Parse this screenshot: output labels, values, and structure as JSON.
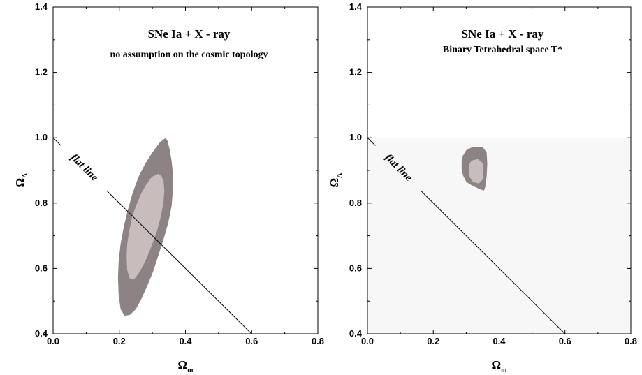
{
  "chart_data": [
    {
      "type": "contour",
      "title": "SNe Ia + X - ray",
      "subtitle": "no assumption on the cosmic topology",
      "xlabel": "Ω",
      "xlabel_sub": "m",
      "ylabel": "Ω",
      "ylabel_sub": "Λ",
      "xlim": [
        0.0,
        0.8
      ],
      "ylim": [
        0.4,
        1.4
      ],
      "xticks": [
        "0.0",
        "0.2",
        "0.4",
        "0.6",
        "0.8"
      ],
      "yticks": [
        "0.4",
        "0.6",
        "0.8",
        "1.0",
        "1.2",
        "1.4"
      ],
      "flat_line": {
        "label": "flat line",
        "x": [
          0.0,
          0.6
        ],
        "y": [
          1.0,
          0.4
        ]
      },
      "regions": [
        {
          "level": "outer",
          "color": "#8e8384",
          "x": [
            0.34,
            0.322,
            0.3,
            0.278,
            0.258,
            0.24,
            0.226,
            0.214,
            0.204,
            0.198,
            0.196,
            0.198,
            0.204,
            0.216,
            0.232,
            0.25,
            0.266,
            0.284,
            0.302,
            0.318,
            0.334,
            0.348,
            0.358,
            0.362,
            0.362,
            0.358,
            0.352,
            0.346,
            0.34
          ],
          "y": [
            1.0,
            0.985,
            0.955,
            0.92,
            0.88,
            0.83,
            0.78,
            0.73,
            0.675,
            0.62,
            0.57,
            0.52,
            0.475,
            0.455,
            0.458,
            0.475,
            0.505,
            0.545,
            0.59,
            0.64,
            0.69,
            0.74,
            0.79,
            0.84,
            0.89,
            0.93,
            0.965,
            0.99,
            1.0
          ]
        },
        {
          "level": "inner",
          "color": "#c8bcbc",
          "x": [
            0.318,
            0.298,
            0.28,
            0.264,
            0.25,
            0.238,
            0.23,
            0.224,
            0.222,
            0.224,
            0.232,
            0.246,
            0.262,
            0.28,
            0.298,
            0.314,
            0.326,
            0.334,
            0.336,
            0.334,
            0.328,
            0.318
          ],
          "y": [
            0.89,
            0.88,
            0.855,
            0.825,
            0.79,
            0.755,
            0.715,
            0.675,
            0.635,
            0.595,
            0.568,
            0.568,
            0.59,
            0.625,
            0.67,
            0.715,
            0.76,
            0.805,
            0.84,
            0.865,
            0.882,
            0.89
          ]
        }
      ]
    },
    {
      "type": "contour",
      "title": "SNe Ia + X - ray",
      "subtitle": "Binary Tetrahedral space T*",
      "xlabel": "Ω",
      "xlabel_sub": "m",
      "ylabel": "Ω",
      "ylabel_sub": "Λ",
      "xlim": [
        0.0,
        0.8
      ],
      "ylim": [
        0.4,
        1.4
      ],
      "xticks": [
        "0.0",
        "0.2",
        "0.4",
        "0.6",
        "0.8"
      ],
      "yticks": [
        "0.4",
        "0.6",
        "0.8",
        "1.0",
        "1.2",
        "1.4"
      ],
      "flat_line": {
        "label": "flat line",
        "x": [
          0.0,
          0.6
        ],
        "y": [
          1.0,
          0.4
        ]
      },
      "regions": [
        {
          "level": "outer",
          "color": "#8e8384",
          "x": [
            0.29,
            0.3,
            0.32,
            0.35,
            0.362,
            0.364,
            0.362,
            0.358,
            0.354,
            0.336,
            0.316,
            0.3,
            0.29,
            0.286,
            0.286,
            0.29
          ],
          "y": [
            0.945,
            0.962,
            0.972,
            0.972,
            0.955,
            0.92,
            0.88,
            0.85,
            0.838,
            0.845,
            0.855,
            0.865,
            0.885,
            0.905,
            0.928,
            0.945
          ]
        },
        {
          "level": "inner",
          "color": "#c8bcbc",
          "x": [
            0.316,
            0.336,
            0.35,
            0.352,
            0.35,
            0.338,
            0.32,
            0.31,
            0.308,
            0.31,
            0.316
          ],
          "y": [
            0.93,
            0.935,
            0.922,
            0.9,
            0.872,
            0.86,
            0.865,
            0.88,
            0.9,
            0.92,
            0.93
          ]
        }
      ]
    }
  ]
}
